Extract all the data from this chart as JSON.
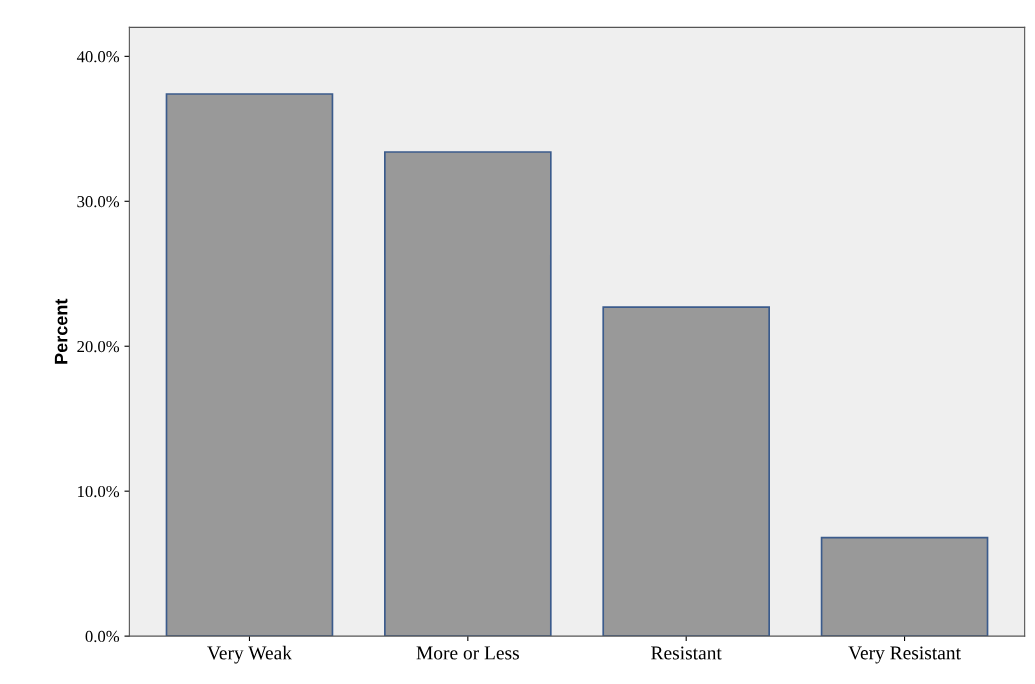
{
  "chart_data": {
    "type": "bar",
    "ylabel": "Percent",
    "categories": [
      "Very Weak",
      "More or Less",
      "Resistant",
      "Very Resistant"
    ],
    "values": [
      37.4,
      33.4,
      22.7,
      6.8
    ],
    "color": "#999999",
    "ylim": [
      0,
      42
    ],
    "yticks": [
      {
        "value": 0,
        "label": "0.0%"
      },
      {
        "value": 10,
        "label": "10.0%"
      },
      {
        "value": 20,
        "label": "20.0%"
      },
      {
        "value": 30,
        "label": "30.0%"
      },
      {
        "value": 40,
        "label": "40.0%"
      }
    ],
    "grid": false
  }
}
